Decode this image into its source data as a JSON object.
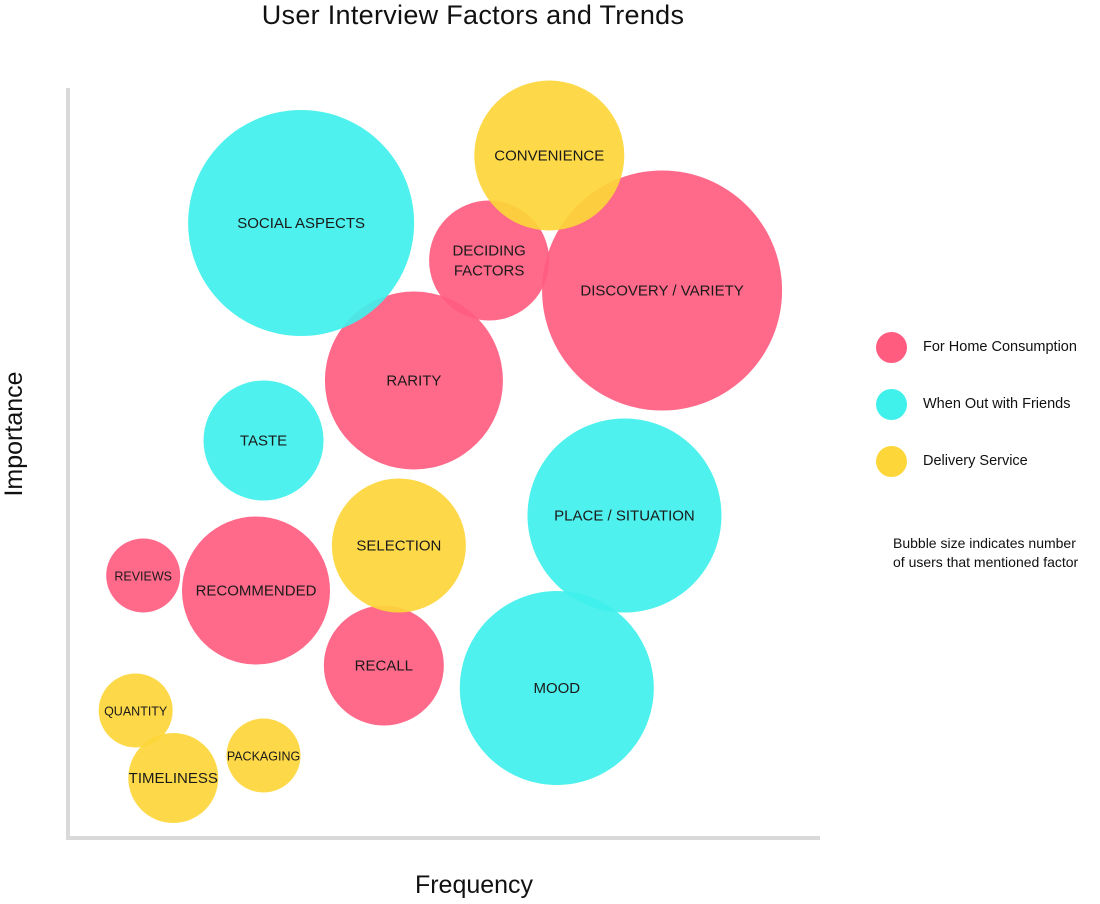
{
  "chart_data": {
    "type": "scatter",
    "title": "User Interview Factors and Trends",
    "xlabel": "Frequency",
    "ylabel": "Importance",
    "xlim": [
      0,
      100
    ],
    "ylim": [
      0,
      100
    ],
    "grid": false,
    "legend_placement": "right",
    "series": [
      {
        "name": "For Home Consumption",
        "color": "#ff5c80",
        "points": [
          {
            "label": "DISCOVERY / VARIETY",
            "x": 79,
            "y": 73,
            "size": 120
          },
          {
            "label": "DECIDING FACTORS",
            "x": 56,
            "y": 77,
            "size": 60
          },
          {
            "label": "RARITY",
            "x": 46,
            "y": 61,
            "size": 89
          },
          {
            "label": "RECOMMENDED",
            "x": 25,
            "y": 33,
            "size": 74
          },
          {
            "label": "REVIEWS",
            "x": 10,
            "y": 35,
            "size": 37
          },
          {
            "label": "RECALL",
            "x": 42,
            "y": 23,
            "size": 60
          }
        ]
      },
      {
        "name": "When Out with Friends",
        "color": "#3ff0eb",
        "points": [
          {
            "label": "SOCIAL ASPECTS",
            "x": 31,
            "y": 82,
            "size": 113
          },
          {
            "label": "TASTE",
            "x": 26,
            "y": 53,
            "size": 60
          },
          {
            "label": "PLACE / SITUATION",
            "x": 74,
            "y": 43,
            "size": 97
          },
          {
            "label": "MOOD",
            "x": 65,
            "y": 20,
            "size": 97
          }
        ]
      },
      {
        "name": "Delivery Service",
        "color": "#fdd63a",
        "points": [
          {
            "label": "CONVENIENCE",
            "x": 64,
            "y": 91,
            "size": 75
          },
          {
            "label": "SELECTION",
            "x": 44,
            "y": 39,
            "size": 67
          },
          {
            "label": "QUANTITY",
            "x": 9,
            "y": 17,
            "size": 37
          },
          {
            "label": "TIMELINESS",
            "x": 14,
            "y": 8,
            "size": 45
          },
          {
            "label": "PACKAGING",
            "x": 26,
            "y": 11,
            "size": 37
          }
        ]
      }
    ],
    "note": [
      "Bubble size indicates number",
      "of users that mentioned factor"
    ]
  }
}
